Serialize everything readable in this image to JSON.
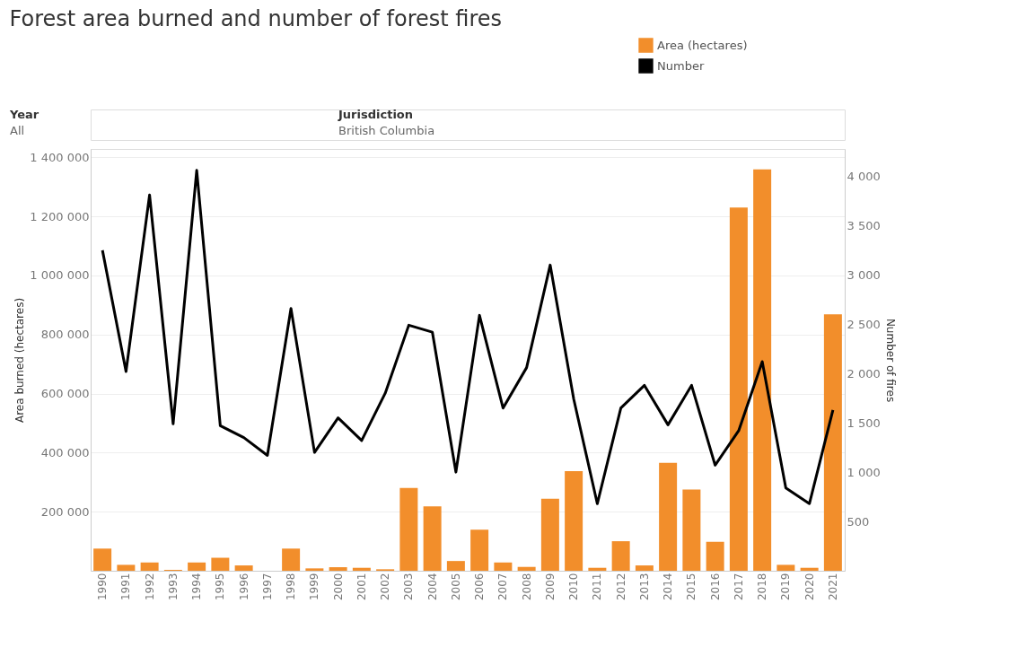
{
  "chart_data": {
    "type": "bar",
    "title": "Forest area burned and number of forest fires",
    "annotations": [
      "Year",
      "All",
      "Jurisdiction",
      "British Columbia"
    ],
    "categories": [
      "1990",
      "1991",
      "1992",
      "1993",
      "1994",
      "1995",
      "1996",
      "1997",
      "1998",
      "1999",
      "2000",
      "2001",
      "2002",
      "2003",
      "2004",
      "2005",
      "2006",
      "2007",
      "2008",
      "2009",
      "2010",
      "2011",
      "2012",
      "2013",
      "2014",
      "2015",
      "2016",
      "2017",
      "2018",
      "2019",
      "2020",
      "2021"
    ],
    "series": [
      {
        "name": "Area (hectares)",
        "color": "#f28e2b",
        "values": [
          75000,
          20000,
          28000,
          3000,
          28000,
          44000,
          18000,
          null,
          75000,
          8000,
          12000,
          10000,
          5000,
          280000,
          218000,
          33000,
          139000,
          28000,
          13000,
          244000,
          337000,
          10000,
          100000,
          18000,
          365000,
          275000,
          98000,
          1230000,
          1359000,
          20000,
          10000,
          868000
        ]
      },
      {
        "name": "Number",
        "type": "line",
        "axis": "y2",
        "color": "#000000",
        "values": [
          3250,
          2020,
          3810,
          1490,
          4060,
          1470,
          1350,
          1170,
          2660,
          1200,
          1550,
          1320,
          1800,
          2490,
          2420,
          1000,
          2590,
          1650,
          2060,
          3100,
          1740,
          680,
          1650,
          1880,
          1480,
          1880,
          1070,
          1420,
          2120,
          840,
          680,
          1630
        ]
      }
    ],
    "ylabel": "Area burned (hectares)",
    "y2label": "Number of fires",
    "ylim": [
      0,
      1428000
    ],
    "yticks": [
      {
        "value": 200000,
        "label": "200 000"
      },
      {
        "value": 400000,
        "label": "400 000"
      },
      {
        "value": 600000,
        "label": "600 000"
      },
      {
        "value": 800000,
        "label": "800 000"
      },
      {
        "value": 1000000,
        "label": "1 000 000"
      },
      {
        "value": 1200000,
        "label": "1 200 000"
      },
      {
        "value": 1400000,
        "label": "1 400 000"
      }
    ],
    "y2lim": [
      0,
      4277
    ],
    "y2ticks": [
      500,
      {
        "value": 1000,
        "label": "1 000"
      },
      {
        "value": 1500,
        "label": "1 500"
      },
      {
        "value": 2000,
        "label": "2 000"
      },
      {
        "value": 2500,
        "label": "2 500"
      },
      {
        "value": 3000,
        "label": "3 000"
      },
      {
        "value": 3500,
        "label": "3 500"
      },
      {
        "value": 4000,
        "label": "4 000"
      }
    ],
    "grid": "y",
    "legend": "top right",
    "line_style": "solid",
    "marker": "none"
  }
}
